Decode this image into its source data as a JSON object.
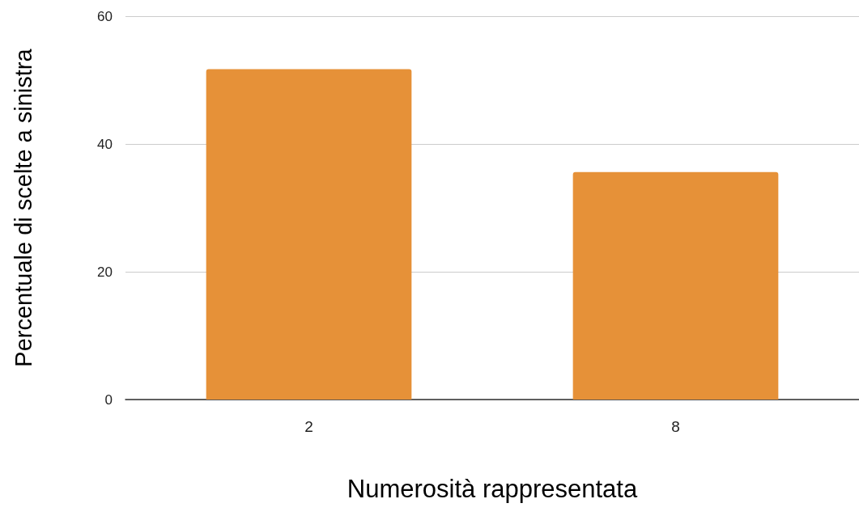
{
  "chart_data": {
    "type": "bar",
    "xlabel": "Numerosità rappresentata",
    "ylabel": "Percentuale di scelte a sinistra",
    "categories": [
      "2",
      "8"
    ],
    "series": [
      {
        "color": "#e69138",
        "values": [
          51.7,
          35.6
        ]
      }
    ],
    "ylim": [
      0,
      60
    ],
    "yticks": [
      0,
      20,
      40,
      60
    ],
    "grid": "y"
  }
}
